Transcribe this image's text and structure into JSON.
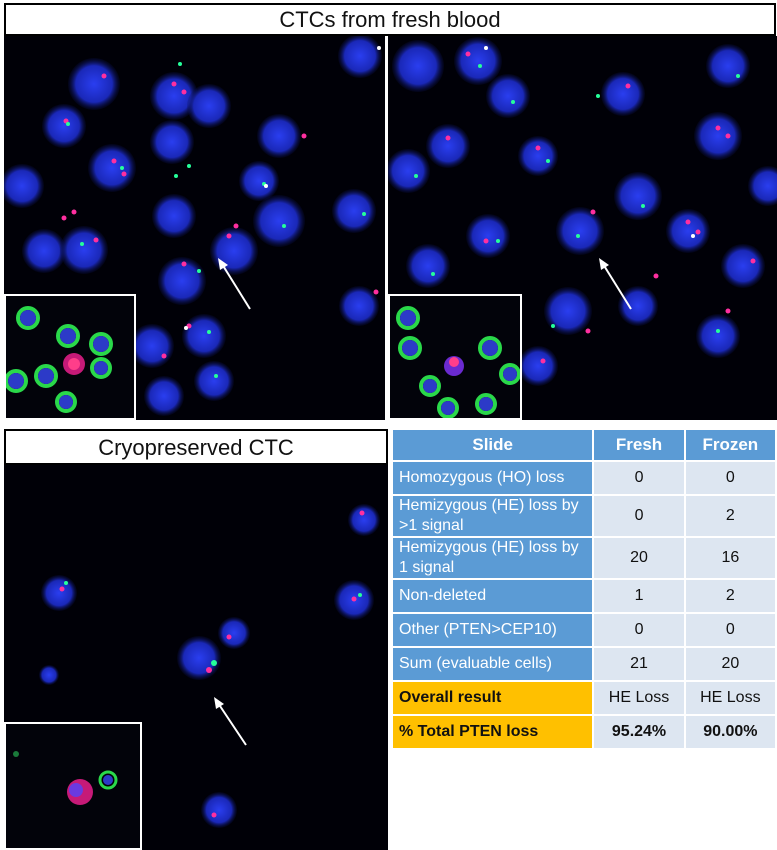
{
  "top_title": "CTCs from fresh blood",
  "bottom_title": "Cryopreserved CTC",
  "table": {
    "headers": [
      "Slide",
      "Fresh",
      "Frozen"
    ],
    "rows": [
      {
        "label": "Homozygous (HO) loss",
        "fresh": "0",
        "frozen": "0"
      },
      {
        "label": "Hemizygous (HE) loss by >1 signal",
        "fresh": "0",
        "frozen": "2"
      },
      {
        "label": "Hemizygous (HE) loss by 1 signal",
        "fresh": "20",
        "frozen": "16"
      },
      {
        "label": "Non-deleted",
        "fresh": "1",
        "frozen": "2"
      },
      {
        "label": "Other (PTEN>CEP10)",
        "fresh": "0",
        "frozen": "0"
      },
      {
        "label": "Sum (evaluable cells)",
        "fresh": "21",
        "frozen": "20"
      }
    ],
    "overall": {
      "label": "Overall result",
      "fresh": "HE Loss",
      "frozen": "HE Loss"
    },
    "total": {
      "label": "% Total PTEN loss",
      "fresh": "95.24%",
      "frozen": "90.00%"
    }
  },
  "colors": {
    "header": "#5b9bd5",
    "cell": "#dde6f1",
    "gold": "#ffc000",
    "nucleus": "#1f2fd0"
  }
}
